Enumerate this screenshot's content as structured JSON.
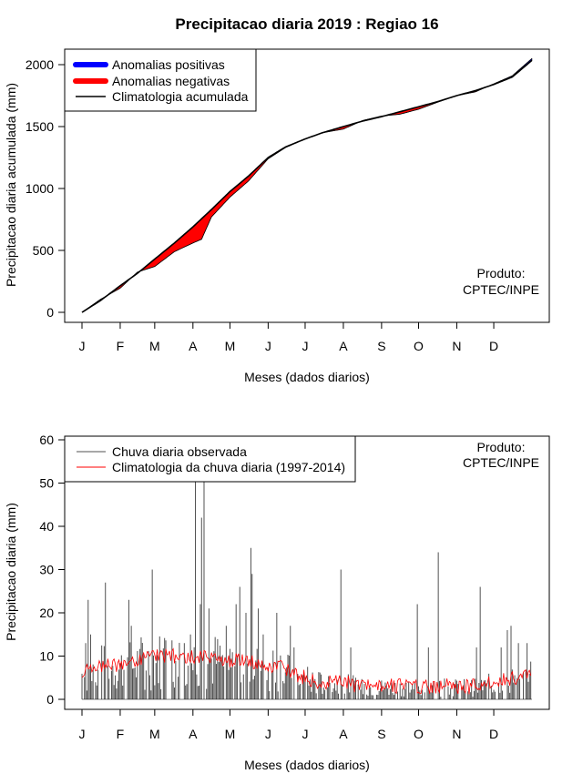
{
  "title": "Precipitacao diaria 2019 : Regiao 16",
  "months": [
    "J",
    "F",
    "M",
    "A",
    "M",
    "J",
    "J",
    "A",
    "S",
    "O",
    "N",
    "D"
  ],
  "chart_data": [
    {
      "type": "area",
      "name": "cumulative",
      "title": "Precipitacao diaria 2019 : Regiao 16",
      "xlabel": "Meses (dados diarios)",
      "ylabel": "Precipitacao diaria acumulada (mm)",
      "ylim": [
        0,
        2000
      ],
      "yticks": [
        "0",
        "500",
        "1000",
        "1500",
        "2000"
      ],
      "xlim_days": [
        0,
        365
      ],
      "grid": false,
      "legend": {
        "placement": "top-left",
        "entries": [
          {
            "label": "Anomalias positivas",
            "color": "#0000ff"
          },
          {
            "label": "Anomalias negativas",
            "color": "#ff0000"
          },
          {
            "label": "Climatologia acumulada",
            "color": "#000000"
          }
        ]
      },
      "annotation": [
        "Produto:",
        "CPTEC/INPE"
      ],
      "climatology": {
        "day": [
          0,
          15,
          31,
          45,
          59,
          75,
          90,
          105,
          120,
          135,
          151,
          165,
          181,
          195,
          212,
          228,
          243,
          258,
          273,
          288,
          304,
          319,
          334,
          349,
          365
        ],
        "mm": [
          0,
          95,
          215,
          315,
          430,
          560,
          690,
          830,
          975,
          1100,
          1250,
          1335,
          1400,
          1450,
          1500,
          1545,
          1580,
          1620,
          1660,
          1700,
          1750,
          1790,
          1840,
          1900,
          2035
        ]
      },
      "observed": {
        "day": [
          0,
          15,
          31,
          45,
          59,
          75,
          90,
          97,
          105,
          120,
          135,
          151,
          165,
          181,
          195,
          212,
          228,
          243,
          258,
          273,
          288,
          304,
          319,
          334,
          349,
          365
        ],
        "mm": [
          0,
          105,
          195,
          325,
          370,
          490,
          560,
          590,
          770,
          930,
          1060,
          1240,
          1330,
          1400,
          1450,
          1480,
          1550,
          1585,
          1600,
          1640,
          1695,
          1750,
          1780,
          1845,
          1910,
          2050
        ]
      }
    },
    {
      "type": "bar",
      "name": "daily",
      "xlabel": "Meses (dados diarios)",
      "ylabel": "Precipitacao diaria (mm)",
      "ylim": [
        0,
        60
      ],
      "yticks": [
        "0",
        "10",
        "20",
        "30",
        "40",
        "50",
        "60"
      ],
      "xlim_days": [
        0,
        365
      ],
      "grid": false,
      "legend": {
        "placement": "top-left",
        "entries": [
          {
            "label": "Chuva diaria observada",
            "color": "#505050"
          },
          {
            "label": "Climatologia da chuva diaria (1997-2014)",
            "color": "#ff0000"
          }
        ]
      },
      "annotation": [
        "Produto:",
        "CPTEC/INPE"
      ],
      "observed_peaks": [
        {
          "day": 3,
          "mm": 13
        },
        {
          "day": 5,
          "mm": 23
        },
        {
          "day": 7,
          "mm": 15
        },
        {
          "day": 19,
          "mm": 27
        },
        {
          "day": 38,
          "mm": 23
        },
        {
          "day": 40,
          "mm": 17
        },
        {
          "day": 57,
          "mm": 30
        },
        {
          "day": 83,
          "mm": 13
        },
        {
          "day": 88,
          "mm": 15
        },
        {
          "day": 92,
          "mm": 60
        },
        {
          "day": 96,
          "mm": 22
        },
        {
          "day": 97,
          "mm": 42
        },
        {
          "day": 99,
          "mm": 60
        },
        {
          "day": 103,
          "mm": 21
        },
        {
          "day": 117,
          "mm": 17
        },
        {
          "day": 125,
          "mm": 22
        },
        {
          "day": 128,
          "mm": 26
        },
        {
          "day": 133,
          "mm": 20
        },
        {
          "day": 137,
          "mm": 35
        },
        {
          "day": 138,
          "mm": 29
        },
        {
          "day": 143,
          "mm": 21
        },
        {
          "day": 147,
          "mm": 15
        },
        {
          "day": 158,
          "mm": 20
        },
        {
          "day": 169,
          "mm": 17
        },
        {
          "day": 172,
          "mm": 12
        },
        {
          "day": 210,
          "mm": 30
        },
        {
          "day": 218,
          "mm": 12
        },
        {
          "day": 272,
          "mm": 22
        },
        {
          "day": 281,
          "mm": 12
        },
        {
          "day": 289,
          "mm": 34
        },
        {
          "day": 320,
          "mm": 12
        },
        {
          "day": 323,
          "mm": 26
        },
        {
          "day": 340,
          "mm": 12
        },
        {
          "day": 345,
          "mm": 16
        },
        {
          "day": 348,
          "mm": 17
        },
        {
          "day": 354,
          "mm": 13
        },
        {
          "day": 361,
          "mm": 13
        }
      ],
      "climatology": {
        "day": [
          0,
          15,
          31,
          45,
          59,
          75,
          90,
          105,
          120,
          135,
          151,
          165,
          181,
          195,
          212,
          228,
          243,
          258,
          273,
          288,
          304,
          319,
          334,
          349,
          365
        ],
        "mm": [
          6,
          8,
          8,
          9,
          10,
          10,
          10,
          10,
          9,
          9,
          8,
          7,
          5,
          4,
          4,
          3,
          3,
          3,
          3,
          3,
          3,
          3,
          4,
          5,
          6
        ]
      }
    }
  ]
}
